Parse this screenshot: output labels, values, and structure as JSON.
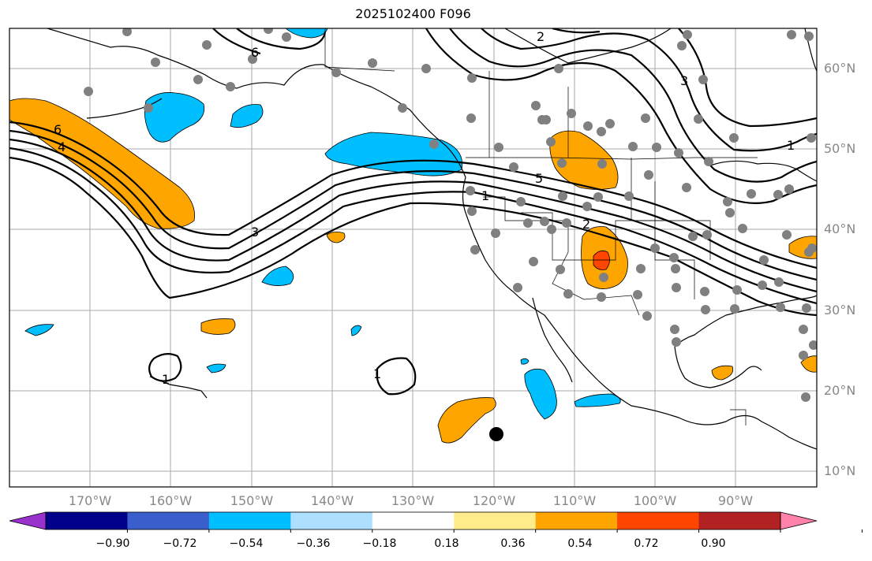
{
  "title": "2025102400 F096",
  "axes": {
    "lat_labels": [
      "60°N",
      "50°N",
      "40°N",
      "30°N",
      "20°N",
      "10°N"
    ],
    "lon_labels": [
      "170°W",
      "160°W",
      "150°W",
      "140°W",
      "130°W",
      "120°W",
      "110°W",
      "100°W",
      "90°W"
    ]
  },
  "colorbar": {
    "colors": [
      "#9932CC",
      "#00008B",
      "#3A5FCD",
      "#00BFFF",
      "#ADDFFF",
      "#FFFFFF",
      "#FFEC8B",
      "#FFA500",
      "#FF4500",
      "#B22222",
      "#FF82AB"
    ],
    "tick_labels": [
      "−0.90",
      "−0.72",
      "−0.54",
      "−0.36",
      "−0.18",
      "0.18",
      "0.36",
      "0.54",
      "0.72",
      "0.90"
    ]
  },
  "contour_labels": [
    "6",
    "4",
    "3",
    "1",
    "5",
    "2",
    "6",
    "2",
    "1",
    "1",
    "1",
    "3"
  ],
  "colors": {
    "positive_fill": "#FFA500",
    "strong_positive_fill": "#FF4500",
    "negative_fill": "#00BFFF",
    "station_dot": "#808080",
    "grid": "#AAAAAA",
    "label_gray": "#888888"
  }
}
